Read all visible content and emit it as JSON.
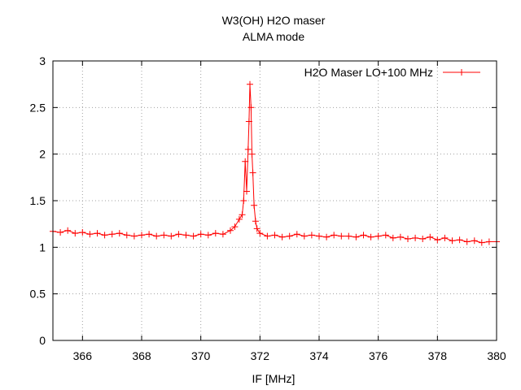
{
  "chart_data": {
    "type": "line",
    "title": "W3(OH) H2O maser",
    "subtitle": "ALMA mode",
    "xlabel": "IF [MHz]",
    "ylabel": "",
    "xlim": [
      365,
      380
    ],
    "ylim": [
      0,
      3
    ],
    "x_ticks": [
      366,
      368,
      370,
      372,
      374,
      376,
      378,
      380
    ],
    "y_ticks": [
      0,
      0.5,
      1,
      1.5,
      2,
      2.5,
      3
    ],
    "x_tick_labels": [
      "366",
      "368",
      "370",
      "372",
      "374",
      "376",
      "378",
      "380"
    ],
    "y_tick_labels": [
      "0",
      "0.5",
      "1",
      "1.5",
      "2",
      "2.5",
      "3"
    ],
    "grid": true,
    "legend_position": "top-right",
    "marker": "plus",
    "series": [
      {
        "name": "H2O Maser LO+100 MHz",
        "color": "#ff0000",
        "x": [
          365.0,
          365.25,
          365.5,
          365.75,
          366.0,
          366.25,
          366.5,
          366.75,
          367.0,
          367.25,
          367.5,
          367.75,
          368.0,
          368.25,
          368.5,
          368.75,
          369.0,
          369.25,
          369.5,
          369.75,
          370.0,
          370.25,
          370.5,
          370.75,
          371.0,
          371.15,
          371.3,
          371.4,
          371.45,
          371.5,
          371.55,
          371.6,
          371.63,
          371.66,
          371.7,
          371.73,
          371.76,
          371.8,
          371.85,
          371.9,
          372.0,
          372.25,
          372.5,
          372.75,
          373.0,
          373.25,
          373.5,
          373.75,
          374.0,
          374.25,
          374.5,
          374.75,
          375.0,
          375.25,
          375.5,
          375.75,
          376.0,
          376.25,
          376.5,
          376.75,
          377.0,
          377.25,
          377.5,
          377.75,
          378.0,
          378.25,
          378.5,
          378.75,
          379.0,
          379.25,
          379.5,
          379.75,
          380.0
        ],
        "y": [
          1.17,
          1.16,
          1.18,
          1.15,
          1.16,
          1.14,
          1.15,
          1.13,
          1.14,
          1.15,
          1.13,
          1.12,
          1.13,
          1.14,
          1.12,
          1.13,
          1.12,
          1.14,
          1.13,
          1.12,
          1.14,
          1.13,
          1.15,
          1.14,
          1.18,
          1.22,
          1.3,
          1.35,
          1.5,
          1.92,
          1.6,
          2.05,
          2.35,
          2.75,
          2.5,
          2.0,
          1.8,
          1.45,
          1.28,
          1.2,
          1.15,
          1.12,
          1.13,
          1.11,
          1.12,
          1.14,
          1.12,
          1.13,
          1.12,
          1.11,
          1.13,
          1.12,
          1.12,
          1.11,
          1.13,
          1.11,
          1.12,
          1.13,
          1.1,
          1.11,
          1.09,
          1.1,
          1.09,
          1.11,
          1.08,
          1.1,
          1.07,
          1.08,
          1.06,
          1.07,
          1.05,
          1.06,
          1.06
        ]
      }
    ]
  }
}
